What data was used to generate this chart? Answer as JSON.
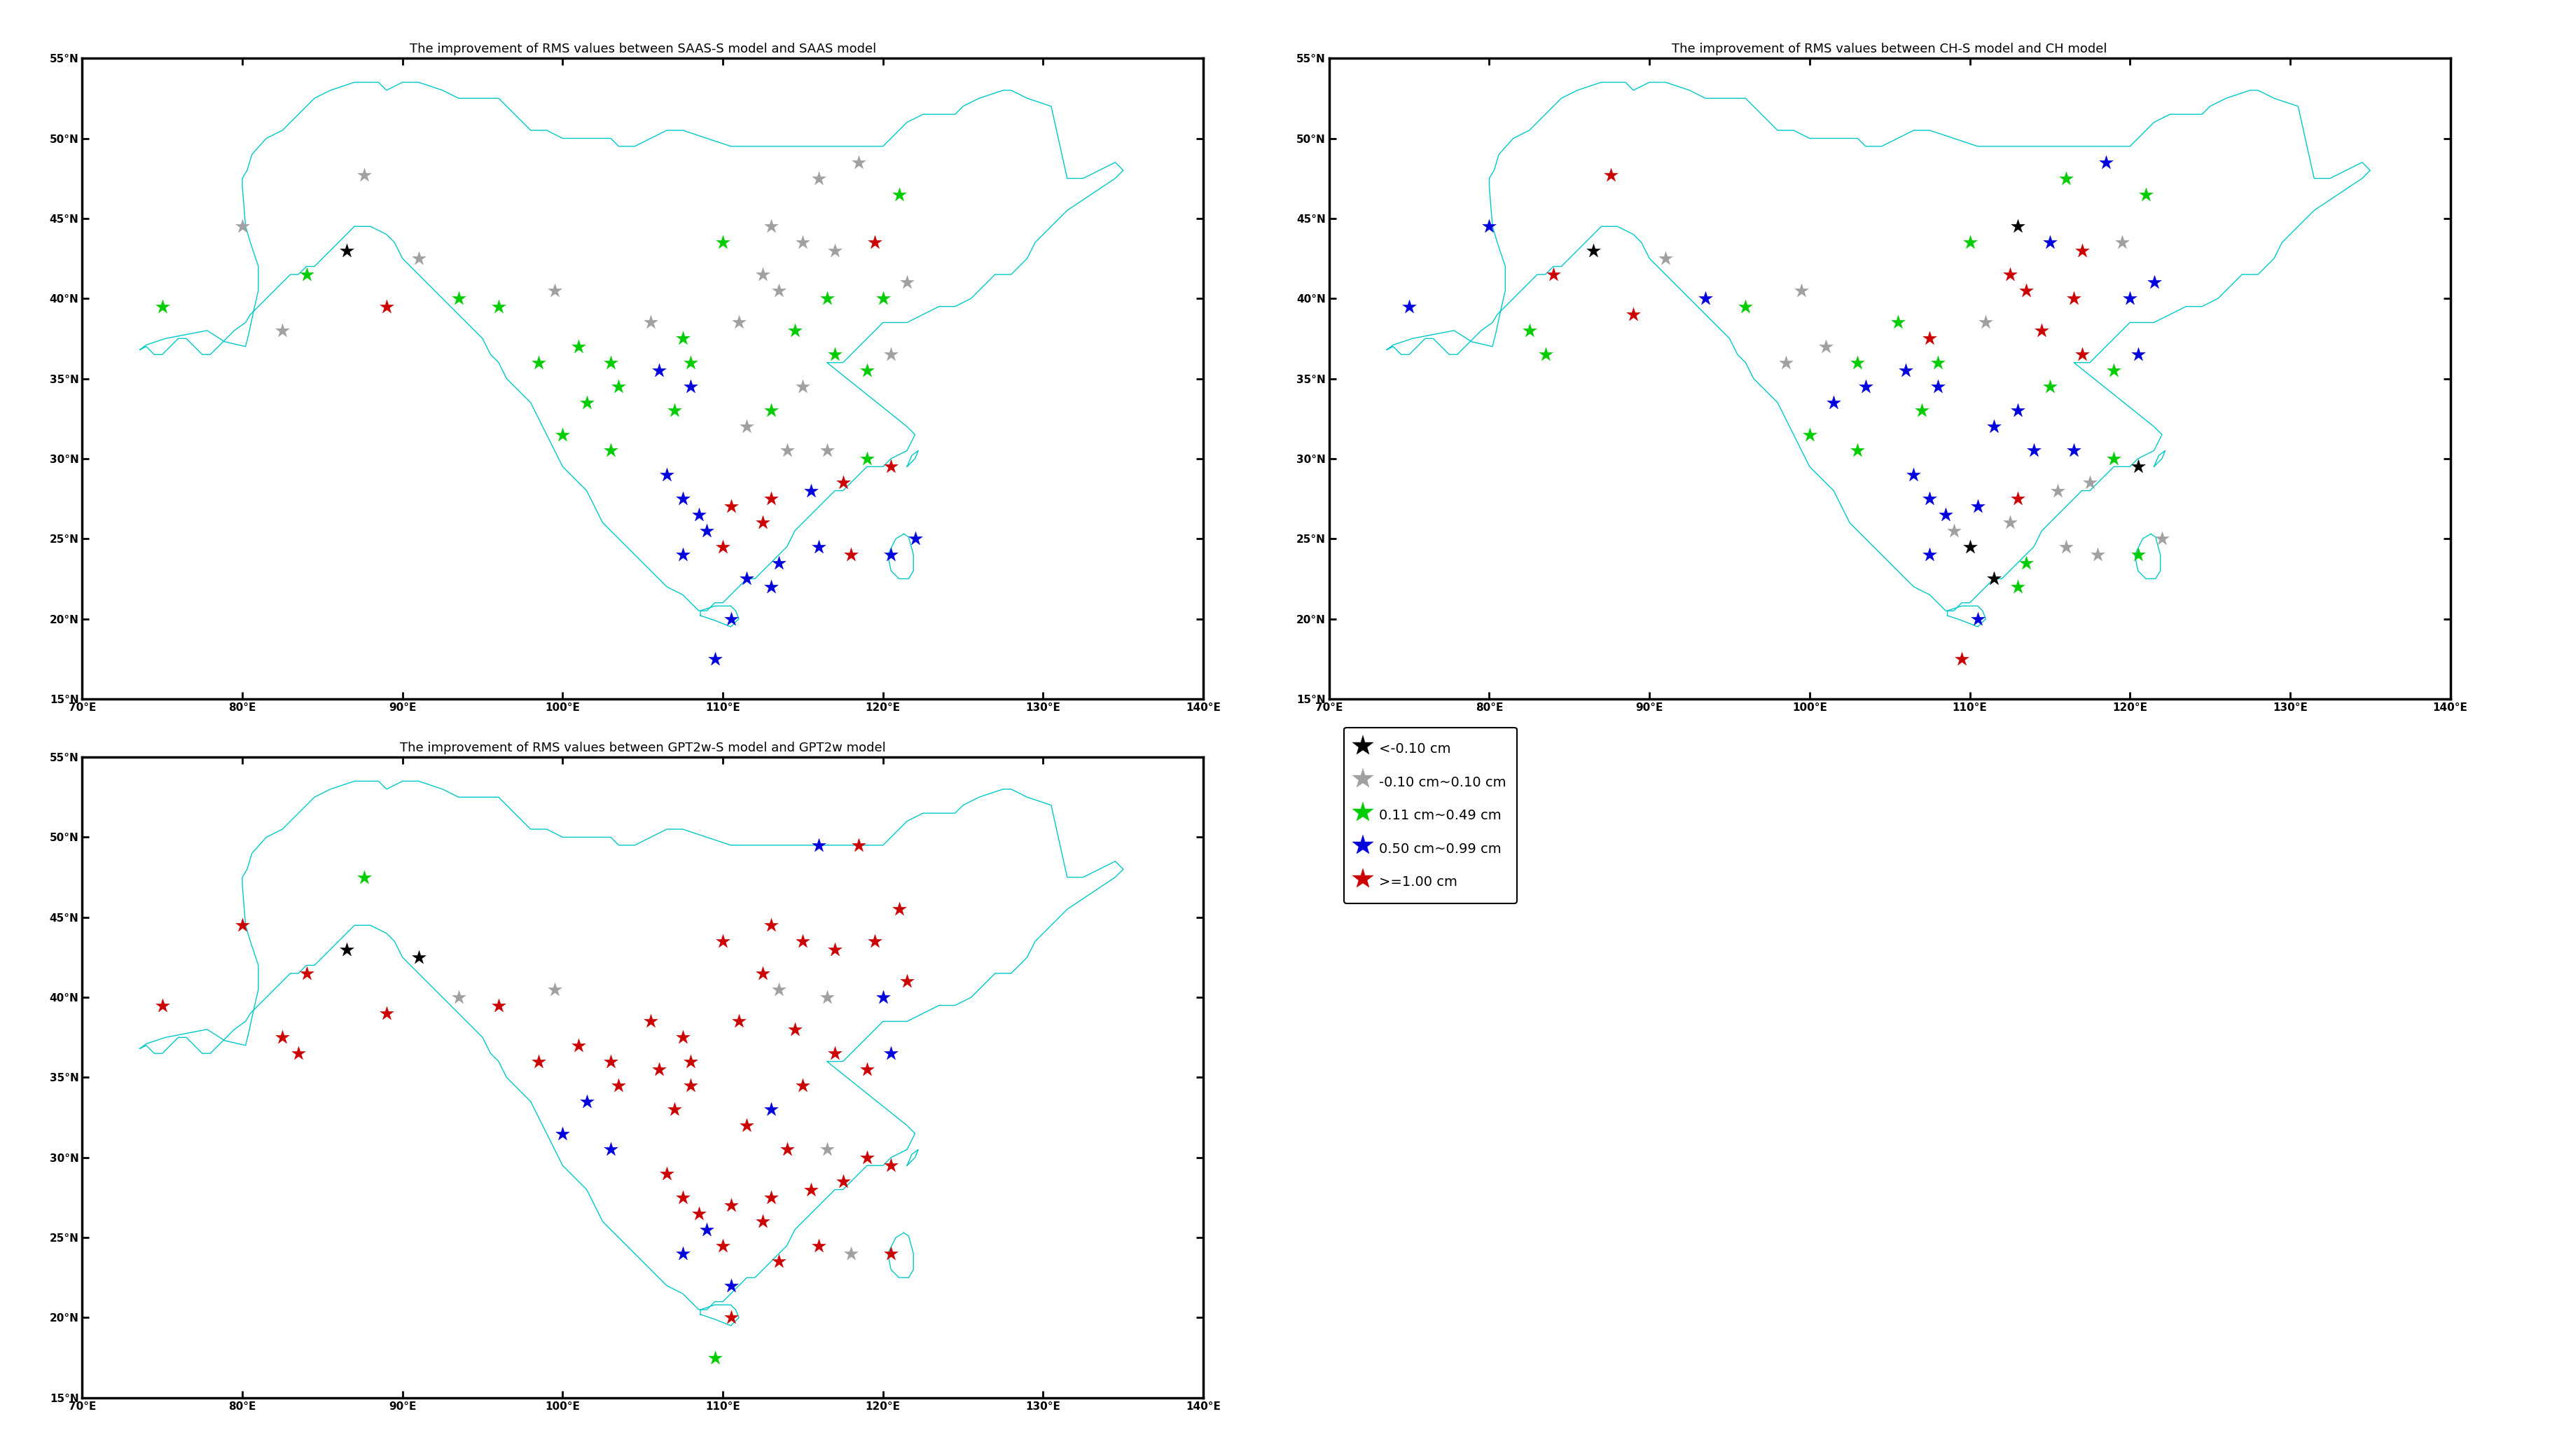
{
  "titles": [
    "The improvement of RMS values between SAAS-S model and SAAS model",
    "The improvement of RMS values between CH-S model and CH model",
    "The improvement of RMS values between GPT2w-S model and GPT2w model"
  ],
  "lon_range": [
    70,
    140
  ],
  "lat_range": [
    15,
    55
  ],
  "lon_ticks": [
    70,
    80,
    90,
    100,
    110,
    120,
    130,
    140
  ],
  "lat_ticks": [
    15,
    20,
    25,
    30,
    35,
    40,
    45,
    50,
    55
  ],
  "color_black": "#000000",
  "color_gray": "#a0a0a0",
  "color_green": "#00cc00",
  "color_blue": "#0000dd",
  "color_red": "#cc0000",
  "legend_labels": [
    "<-0.10 cm",
    "-0.10 cm~0.10 cm",
    "0.11 cm~0.49 cm",
    "0.50 cm~0.99 cm",
    ">=1.00 cm"
  ],
  "star_size": 220,
  "title_fontsize": 13,
  "tick_fontsize": 11,
  "legend_fontsize": 14,
  "panel1_stations": [
    {
      "lon": 87.6,
      "lat": 47.7,
      "color": "gray"
    },
    {
      "lon": 80.0,
      "lat": 44.5,
      "color": "gray"
    },
    {
      "lon": 84.0,
      "lat": 41.5,
      "color": "green"
    },
    {
      "lon": 75.0,
      "lat": 39.5,
      "color": "green"
    },
    {
      "lon": 82.5,
      "lat": 38.0,
      "color": "gray"
    },
    {
      "lon": 86.5,
      "lat": 43.0,
      "color": "black"
    },
    {
      "lon": 91.0,
      "lat": 42.5,
      "color": "gray"
    },
    {
      "lon": 93.5,
      "lat": 40.0,
      "color": "green"
    },
    {
      "lon": 89.0,
      "lat": 39.5,
      "color": "red"
    },
    {
      "lon": 96.0,
      "lat": 39.5,
      "color": "green"
    },
    {
      "lon": 99.5,
      "lat": 40.5,
      "color": "gray"
    },
    {
      "lon": 101.0,
      "lat": 37.0,
      "color": "green"
    },
    {
      "lon": 98.5,
      "lat": 36.0,
      "color": "green"
    },
    {
      "lon": 103.0,
      "lat": 36.0,
      "color": "green"
    },
    {
      "lon": 103.5,
      "lat": 34.5,
      "color": "green"
    },
    {
      "lon": 101.5,
      "lat": 33.5,
      "color": "green"
    },
    {
      "lon": 100.0,
      "lat": 31.5,
      "color": "green"
    },
    {
      "lon": 103.0,
      "lat": 30.5,
      "color": "green"
    },
    {
      "lon": 105.5,
      "lat": 38.5,
      "color": "gray"
    },
    {
      "lon": 106.0,
      "lat": 35.5,
      "color": "blue"
    },
    {
      "lon": 108.0,
      "lat": 34.5,
      "color": "blue"
    },
    {
      "lon": 107.5,
      "lat": 37.5,
      "color": "green"
    },
    {
      "lon": 108.0,
      "lat": 36.0,
      "color": "green"
    },
    {
      "lon": 107.0,
      "lat": 33.0,
      "color": "green"
    },
    {
      "lon": 106.5,
      "lat": 29.0,
      "color": "blue"
    },
    {
      "lon": 107.5,
      "lat": 27.5,
      "color": "blue"
    },
    {
      "lon": 108.5,
      "lat": 26.5,
      "color": "blue"
    },
    {
      "lon": 110.0,
      "lat": 43.5,
      "color": "green"
    },
    {
      "lon": 113.0,
      "lat": 44.5,
      "color": "gray"
    },
    {
      "lon": 116.0,
      "lat": 47.5,
      "color": "gray"
    },
    {
      "lon": 118.5,
      "lat": 48.5,
      "color": "gray"
    },
    {
      "lon": 115.0,
      "lat": 43.5,
      "color": "gray"
    },
    {
      "lon": 112.5,
      "lat": 41.5,
      "color": "gray"
    },
    {
      "lon": 117.0,
      "lat": 43.0,
      "color": "gray"
    },
    {
      "lon": 121.0,
      "lat": 46.5,
      "color": "green"
    },
    {
      "lon": 119.5,
      "lat": 43.5,
      "color": "red"
    },
    {
      "lon": 113.5,
      "lat": 40.5,
      "color": "gray"
    },
    {
      "lon": 116.5,
      "lat": 40.0,
      "color": "green"
    },
    {
      "lon": 120.0,
      "lat": 40.0,
      "color": "green"
    },
    {
      "lon": 121.5,
      "lat": 41.0,
      "color": "gray"
    },
    {
      "lon": 111.0,
      "lat": 38.5,
      "color": "gray"
    },
    {
      "lon": 114.5,
      "lat": 38.0,
      "color": "green"
    },
    {
      "lon": 117.0,
      "lat": 36.5,
      "color": "green"
    },
    {
      "lon": 120.5,
      "lat": 36.5,
      "color": "gray"
    },
    {
      "lon": 119.0,
      "lat": 35.5,
      "color": "green"
    },
    {
      "lon": 115.0,
      "lat": 34.5,
      "color": "gray"
    },
    {
      "lon": 113.0,
      "lat": 33.0,
      "color": "green"
    },
    {
      "lon": 111.5,
      "lat": 32.0,
      "color": "gray"
    },
    {
      "lon": 114.0,
      "lat": 30.5,
      "color": "gray"
    },
    {
      "lon": 116.5,
      "lat": 30.5,
      "color": "gray"
    },
    {
      "lon": 119.0,
      "lat": 30.0,
      "color": "green"
    },
    {
      "lon": 120.5,
      "lat": 29.5,
      "color": "red"
    },
    {
      "lon": 117.5,
      "lat": 28.5,
      "color": "red"
    },
    {
      "lon": 115.5,
      "lat": 28.0,
      "color": "blue"
    },
    {
      "lon": 113.0,
      "lat": 27.5,
      "color": "red"
    },
    {
      "lon": 110.5,
      "lat": 27.0,
      "color": "red"
    },
    {
      "lon": 112.5,
      "lat": 26.0,
      "color": "red"
    },
    {
      "lon": 109.0,
      "lat": 25.5,
      "color": "blue"
    },
    {
      "lon": 110.0,
      "lat": 24.5,
      "color": "red"
    },
    {
      "lon": 113.5,
      "lat": 23.5,
      "color": "blue"
    },
    {
      "lon": 116.0,
      "lat": 24.5,
      "color": "blue"
    },
    {
      "lon": 118.0,
      "lat": 24.0,
      "color": "red"
    },
    {
      "lon": 120.5,
      "lat": 24.0,
      "color": "blue"
    },
    {
      "lon": 122.0,
      "lat": 25.0,
      "color": "blue"
    },
    {
      "lon": 111.5,
      "lat": 22.5,
      "color": "blue"
    },
    {
      "lon": 113.0,
      "lat": 22.0,
      "color": "blue"
    },
    {
      "lon": 107.5,
      "lat": 24.0,
      "color": "blue"
    },
    {
      "lon": 110.5,
      "lat": 20.0,
      "color": "blue"
    },
    {
      "lon": 109.5,
      "lat": 17.5,
      "color": "blue"
    }
  ],
  "panel2_stations": [
    {
      "lon": 87.6,
      "lat": 47.7,
      "color": "red"
    },
    {
      "lon": 80.0,
      "lat": 44.5,
      "color": "blue"
    },
    {
      "lon": 84.0,
      "lat": 41.5,
      "color": "red"
    },
    {
      "lon": 75.0,
      "lat": 39.5,
      "color": "blue"
    },
    {
      "lon": 82.5,
      "lat": 38.0,
      "color": "green"
    },
    {
      "lon": 83.5,
      "lat": 36.5,
      "color": "green"
    },
    {
      "lon": 86.5,
      "lat": 43.0,
      "color": "black"
    },
    {
      "lon": 91.0,
      "lat": 42.5,
      "color": "gray"
    },
    {
      "lon": 93.5,
      "lat": 40.0,
      "color": "blue"
    },
    {
      "lon": 89.0,
      "lat": 39.0,
      "color": "red"
    },
    {
      "lon": 96.0,
      "lat": 39.5,
      "color": "green"
    },
    {
      "lon": 99.5,
      "lat": 40.5,
      "color": "gray"
    },
    {
      "lon": 101.0,
      "lat": 37.0,
      "color": "gray"
    },
    {
      "lon": 98.5,
      "lat": 36.0,
      "color": "gray"
    },
    {
      "lon": 103.0,
      "lat": 36.0,
      "color": "green"
    },
    {
      "lon": 103.5,
      "lat": 34.5,
      "color": "blue"
    },
    {
      "lon": 101.5,
      "lat": 33.5,
      "color": "blue"
    },
    {
      "lon": 100.0,
      "lat": 31.5,
      "color": "green"
    },
    {
      "lon": 103.0,
      "lat": 30.5,
      "color": "green"
    },
    {
      "lon": 105.5,
      "lat": 38.5,
      "color": "green"
    },
    {
      "lon": 106.0,
      "lat": 35.5,
      "color": "blue"
    },
    {
      "lon": 108.0,
      "lat": 34.5,
      "color": "blue"
    },
    {
      "lon": 107.5,
      "lat": 37.5,
      "color": "red"
    },
    {
      "lon": 108.0,
      "lat": 36.0,
      "color": "green"
    },
    {
      "lon": 107.0,
      "lat": 33.0,
      "color": "green"
    },
    {
      "lon": 106.5,
      "lat": 29.0,
      "color": "blue"
    },
    {
      "lon": 107.5,
      "lat": 27.5,
      "color": "blue"
    },
    {
      "lon": 108.5,
      "lat": 26.5,
      "color": "blue"
    },
    {
      "lon": 110.0,
      "lat": 43.5,
      "color": "green"
    },
    {
      "lon": 113.0,
      "lat": 44.5,
      "color": "black"
    },
    {
      "lon": 116.0,
      "lat": 47.5,
      "color": "green"
    },
    {
      "lon": 118.5,
      "lat": 48.5,
      "color": "blue"
    },
    {
      "lon": 115.0,
      "lat": 43.5,
      "color": "blue"
    },
    {
      "lon": 112.5,
      "lat": 41.5,
      "color": "red"
    },
    {
      "lon": 117.0,
      "lat": 43.0,
      "color": "red"
    },
    {
      "lon": 121.0,
      "lat": 46.5,
      "color": "green"
    },
    {
      "lon": 119.5,
      "lat": 43.5,
      "color": "gray"
    },
    {
      "lon": 113.5,
      "lat": 40.5,
      "color": "red"
    },
    {
      "lon": 116.5,
      "lat": 40.0,
      "color": "red"
    },
    {
      "lon": 120.0,
      "lat": 40.0,
      "color": "blue"
    },
    {
      "lon": 121.5,
      "lat": 41.0,
      "color": "blue"
    },
    {
      "lon": 111.0,
      "lat": 38.5,
      "color": "gray"
    },
    {
      "lon": 114.5,
      "lat": 38.0,
      "color": "red"
    },
    {
      "lon": 117.0,
      "lat": 36.5,
      "color": "red"
    },
    {
      "lon": 120.5,
      "lat": 36.5,
      "color": "blue"
    },
    {
      "lon": 119.0,
      "lat": 35.5,
      "color": "green"
    },
    {
      "lon": 115.0,
      "lat": 34.5,
      "color": "green"
    },
    {
      "lon": 113.0,
      "lat": 33.0,
      "color": "blue"
    },
    {
      "lon": 111.5,
      "lat": 32.0,
      "color": "blue"
    },
    {
      "lon": 114.0,
      "lat": 30.5,
      "color": "blue"
    },
    {
      "lon": 116.5,
      "lat": 30.5,
      "color": "blue"
    },
    {
      "lon": 119.0,
      "lat": 30.0,
      "color": "green"
    },
    {
      "lon": 120.5,
      "lat": 29.5,
      "color": "black"
    },
    {
      "lon": 117.5,
      "lat": 28.5,
      "color": "gray"
    },
    {
      "lon": 115.5,
      "lat": 28.0,
      "color": "gray"
    },
    {
      "lon": 113.0,
      "lat": 27.5,
      "color": "red"
    },
    {
      "lon": 110.5,
      "lat": 27.0,
      "color": "blue"
    },
    {
      "lon": 112.5,
      "lat": 26.0,
      "color": "gray"
    },
    {
      "lon": 109.0,
      "lat": 25.5,
      "color": "gray"
    },
    {
      "lon": 110.0,
      "lat": 24.5,
      "color": "black"
    },
    {
      "lon": 113.5,
      "lat": 23.5,
      "color": "green"
    },
    {
      "lon": 116.0,
      "lat": 24.5,
      "color": "gray"
    },
    {
      "lon": 118.0,
      "lat": 24.0,
      "color": "gray"
    },
    {
      "lon": 120.5,
      "lat": 24.0,
      "color": "green"
    },
    {
      "lon": 122.0,
      "lat": 25.0,
      "color": "gray"
    },
    {
      "lon": 111.5,
      "lat": 22.5,
      "color": "black"
    },
    {
      "lon": 113.0,
      "lat": 22.0,
      "color": "green"
    },
    {
      "lon": 107.5,
      "lat": 24.0,
      "color": "blue"
    },
    {
      "lon": 110.5,
      "lat": 20.0,
      "color": "blue"
    },
    {
      "lon": 109.5,
      "lat": 17.5,
      "color": "red"
    }
  ],
  "panel3_stations": [
    {
      "lon": 87.6,
      "lat": 47.5,
      "color": "green"
    },
    {
      "lon": 80.0,
      "lat": 44.5,
      "color": "red"
    },
    {
      "lon": 84.0,
      "lat": 41.5,
      "color": "red"
    },
    {
      "lon": 75.0,
      "lat": 39.5,
      "color": "red"
    },
    {
      "lon": 82.5,
      "lat": 37.5,
      "color": "red"
    },
    {
      "lon": 83.5,
      "lat": 36.5,
      "color": "red"
    },
    {
      "lon": 86.5,
      "lat": 43.0,
      "color": "black"
    },
    {
      "lon": 91.0,
      "lat": 42.5,
      "color": "black"
    },
    {
      "lon": 93.5,
      "lat": 40.0,
      "color": "gray"
    },
    {
      "lon": 89.0,
      "lat": 39.0,
      "color": "red"
    },
    {
      "lon": 96.0,
      "lat": 39.5,
      "color": "red"
    },
    {
      "lon": 99.5,
      "lat": 40.5,
      "color": "gray"
    },
    {
      "lon": 101.0,
      "lat": 37.0,
      "color": "red"
    },
    {
      "lon": 98.5,
      "lat": 36.0,
      "color": "red"
    },
    {
      "lon": 103.0,
      "lat": 36.0,
      "color": "red"
    },
    {
      "lon": 103.5,
      "lat": 34.5,
      "color": "red"
    },
    {
      "lon": 101.5,
      "lat": 33.5,
      "color": "blue"
    },
    {
      "lon": 100.0,
      "lat": 31.5,
      "color": "blue"
    },
    {
      "lon": 103.0,
      "lat": 30.5,
      "color": "blue"
    },
    {
      "lon": 105.5,
      "lat": 38.5,
      "color": "red"
    },
    {
      "lon": 106.0,
      "lat": 35.5,
      "color": "red"
    },
    {
      "lon": 108.0,
      "lat": 34.5,
      "color": "red"
    },
    {
      "lon": 107.5,
      "lat": 37.5,
      "color": "red"
    },
    {
      "lon": 108.0,
      "lat": 36.0,
      "color": "red"
    },
    {
      "lon": 107.0,
      "lat": 33.0,
      "color": "red"
    },
    {
      "lon": 106.5,
      "lat": 29.0,
      "color": "red"
    },
    {
      "lon": 107.5,
      "lat": 27.5,
      "color": "red"
    },
    {
      "lon": 108.5,
      "lat": 26.5,
      "color": "red"
    },
    {
      "lon": 110.0,
      "lat": 43.5,
      "color": "red"
    },
    {
      "lon": 113.0,
      "lat": 44.5,
      "color": "red"
    },
    {
      "lon": 116.0,
      "lat": 49.5,
      "color": "blue"
    },
    {
      "lon": 118.5,
      "lat": 49.5,
      "color": "red"
    },
    {
      "lon": 115.0,
      "lat": 43.5,
      "color": "red"
    },
    {
      "lon": 112.5,
      "lat": 41.5,
      "color": "red"
    },
    {
      "lon": 117.0,
      "lat": 43.0,
      "color": "red"
    },
    {
      "lon": 119.5,
      "lat": 43.5,
      "color": "red"
    },
    {
      "lon": 121.0,
      "lat": 45.5,
      "color": "red"
    },
    {
      "lon": 113.5,
      "lat": 40.5,
      "color": "gray"
    },
    {
      "lon": 116.5,
      "lat": 40.0,
      "color": "gray"
    },
    {
      "lon": 120.0,
      "lat": 40.0,
      "color": "blue"
    },
    {
      "lon": 121.5,
      "lat": 41.0,
      "color": "red"
    },
    {
      "lon": 111.0,
      "lat": 38.5,
      "color": "red"
    },
    {
      "lon": 114.5,
      "lat": 38.0,
      "color": "red"
    },
    {
      "lon": 117.0,
      "lat": 36.5,
      "color": "red"
    },
    {
      "lon": 120.5,
      "lat": 36.5,
      "color": "blue"
    },
    {
      "lon": 119.0,
      "lat": 35.5,
      "color": "red"
    },
    {
      "lon": 115.0,
      "lat": 34.5,
      "color": "red"
    },
    {
      "lon": 113.0,
      "lat": 33.0,
      "color": "blue"
    },
    {
      "lon": 111.5,
      "lat": 32.0,
      "color": "red"
    },
    {
      "lon": 114.0,
      "lat": 30.5,
      "color": "red"
    },
    {
      "lon": 116.5,
      "lat": 30.5,
      "color": "gray"
    },
    {
      "lon": 119.0,
      "lat": 30.0,
      "color": "red"
    },
    {
      "lon": 120.5,
      "lat": 29.5,
      "color": "red"
    },
    {
      "lon": 117.5,
      "lat": 28.5,
      "color": "red"
    },
    {
      "lon": 115.5,
      "lat": 28.0,
      "color": "red"
    },
    {
      "lon": 113.0,
      "lat": 27.5,
      "color": "red"
    },
    {
      "lon": 110.5,
      "lat": 27.0,
      "color": "red"
    },
    {
      "lon": 112.5,
      "lat": 26.0,
      "color": "red"
    },
    {
      "lon": 109.0,
      "lat": 25.5,
      "color": "blue"
    },
    {
      "lon": 110.0,
      "lat": 24.5,
      "color": "red"
    },
    {
      "lon": 113.5,
      "lat": 23.5,
      "color": "red"
    },
    {
      "lon": 116.0,
      "lat": 24.5,
      "color": "red"
    },
    {
      "lon": 118.0,
      "lat": 24.0,
      "color": "gray"
    },
    {
      "lon": 120.5,
      "lat": 24.0,
      "color": "red"
    },
    {
      "lon": 107.5,
      "lat": 24.0,
      "color": "blue"
    },
    {
      "lon": 110.5,
      "lat": 22.0,
      "color": "blue"
    },
    {
      "lon": 109.5,
      "lat": 17.5,
      "color": "green"
    },
    {
      "lon": 110.5,
      "lat": 20.0,
      "color": "red"
    }
  ]
}
